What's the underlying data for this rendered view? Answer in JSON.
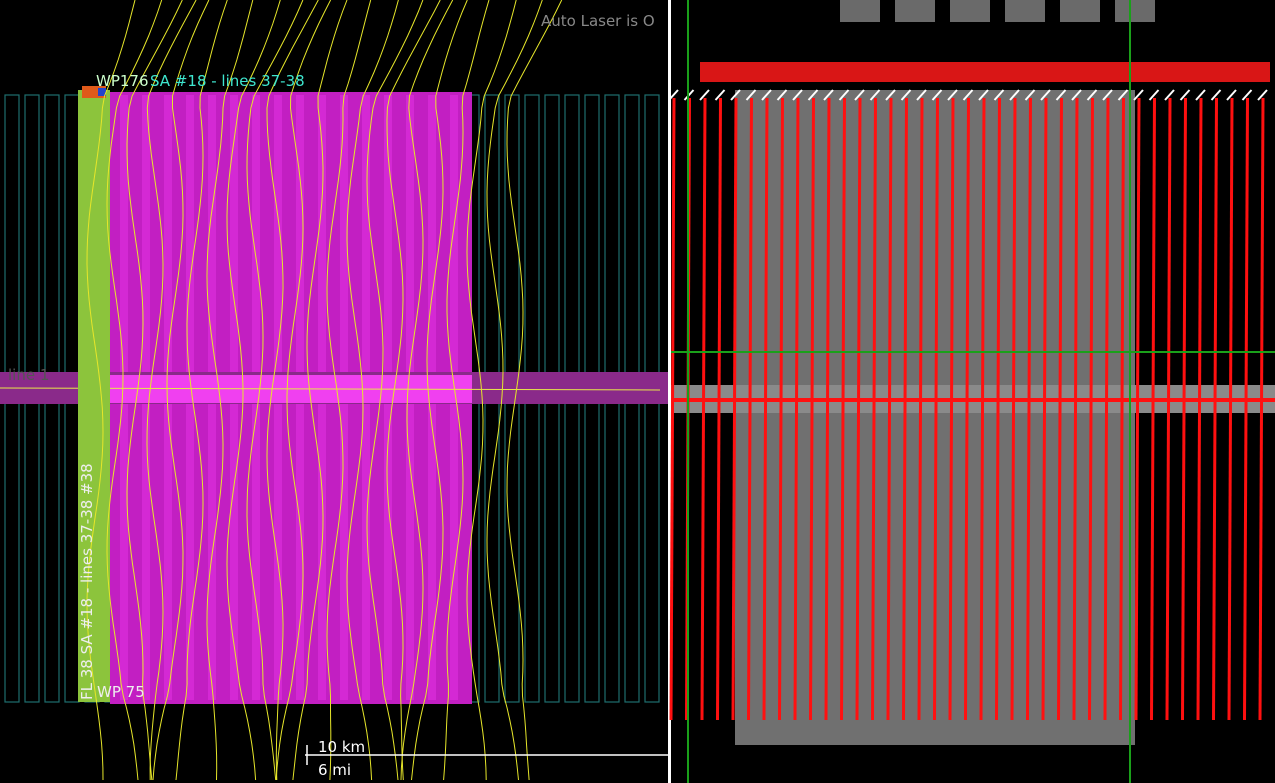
{
  "left_panel": {
    "status": "Auto Laser is O",
    "waypoint_top": "WP176",
    "line_label": "SA #18 - lines 37-38",
    "vertical_label": "FL 38 SA #18 - lines 37-38 #38",
    "waypoint_bottom": "WP 75",
    "crossline_label": "line 1",
    "scale_km": "10 km",
    "scale_mi": "6 mi"
  }
}
